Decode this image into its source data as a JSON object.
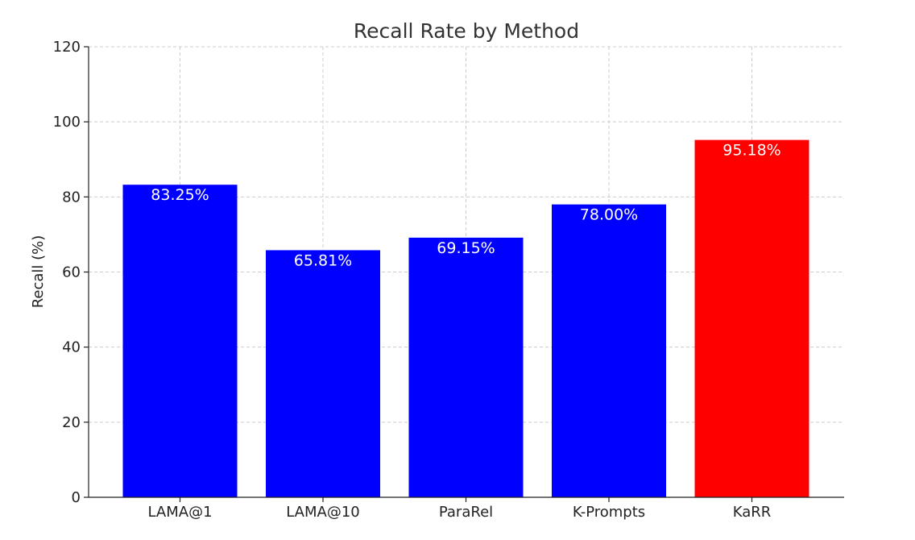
{
  "chart_data": {
    "type": "bar",
    "title": "Recall Rate by Method",
    "xlabel": "",
    "ylabel": "Recall (%)",
    "ylim": [
      0,
      120
    ],
    "yticks": [
      0,
      20,
      40,
      60,
      80,
      100,
      120
    ],
    "grid": true,
    "categories": [
      "LAMA@1",
      "LAMA@10",
      "ParaRel",
      "K-Prompts",
      "KaRR"
    ],
    "values": [
      83.25,
      65.81,
      69.15,
      78.0,
      95.18
    ],
    "data_labels": [
      "83.25%",
      "65.81%",
      "69.15%",
      "78.00%",
      "95.18%"
    ],
    "colors": [
      "#0000ff",
      "#0000ff",
      "#0000ff",
      "#0000ff",
      "#ff0000"
    ]
  }
}
